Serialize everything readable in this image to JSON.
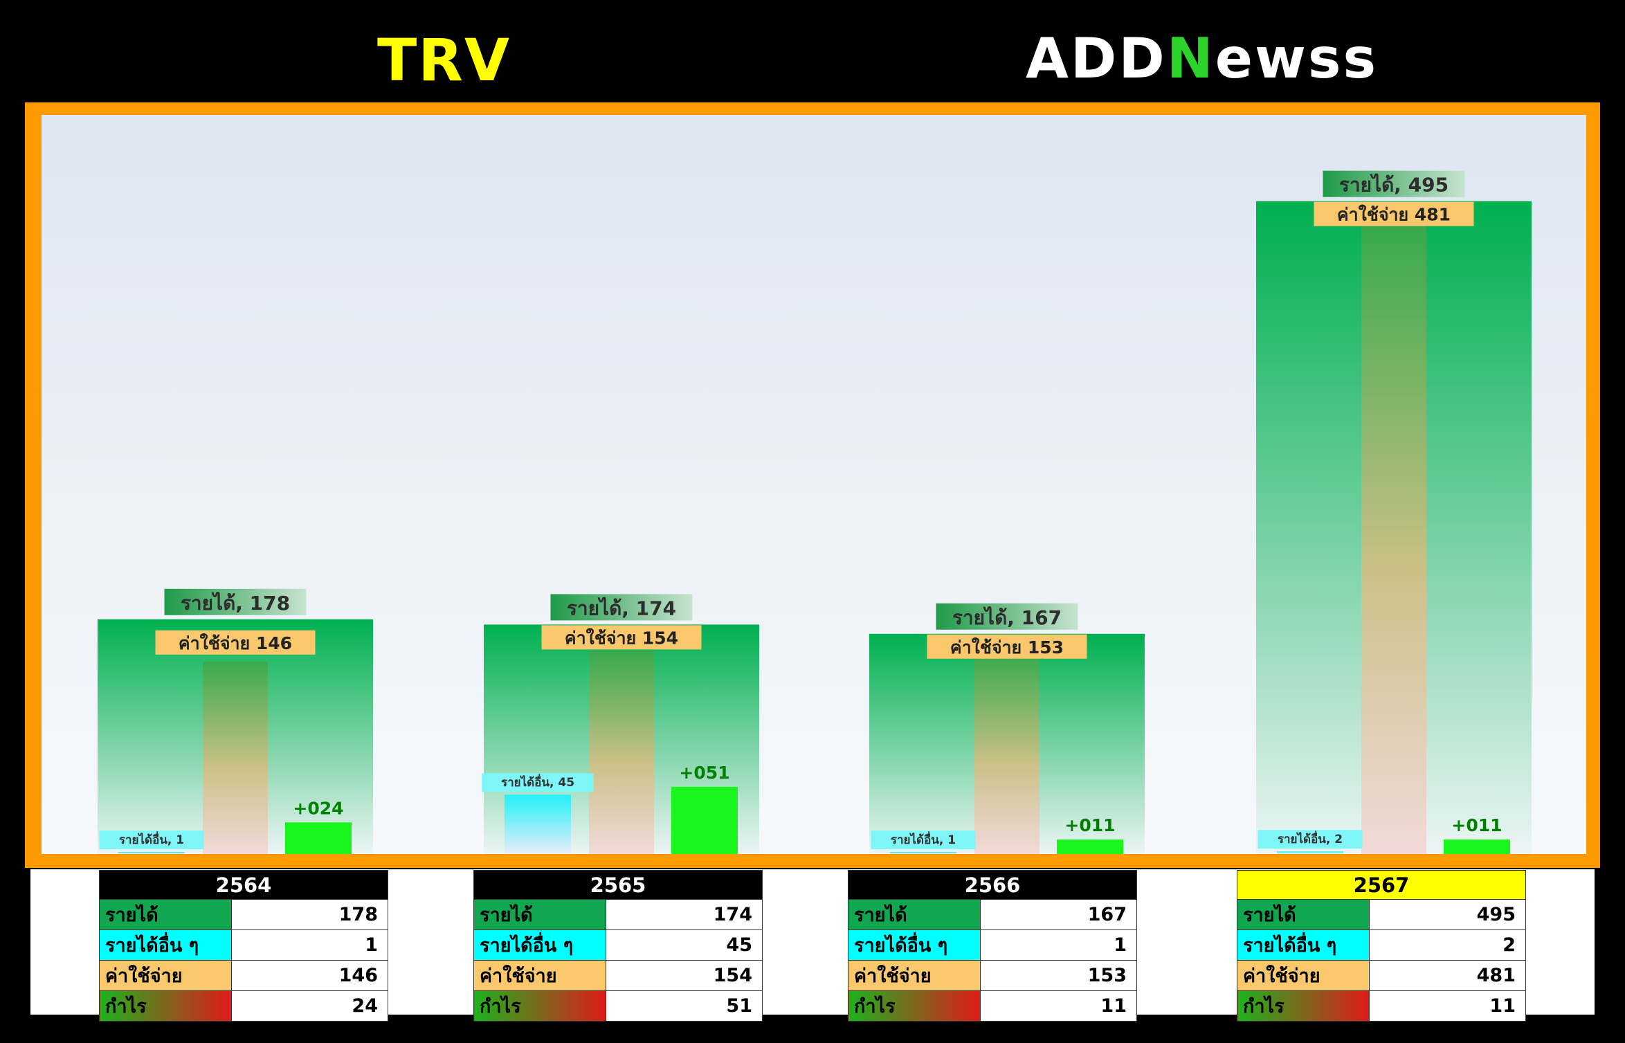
{
  "header": {
    "ticker": "TRV",
    "logo_part1": "ADD",
    "logo_part2": "N",
    "logo_part3": "ewss"
  },
  "colors": {
    "ticker": "#ffff00",
    "frame": "#ff9a00",
    "revenue": "#00b050",
    "other_income": "#00ffff",
    "expense": "#f9c86c",
    "profit_bar": "#19f51d",
    "profit_text": "#008000",
    "highlight_year": "#ffff00"
  },
  "chart_data": {
    "type": "bar",
    "categories": [
      "2564",
      "2565",
      "2566",
      "2567"
    ],
    "ylim": [
      0,
      530
    ],
    "series": [
      {
        "name": "รายได้",
        "values": [
          178,
          174,
          167,
          495
        ]
      },
      {
        "name": "รายได้อื่น ๆ",
        "values": [
          1,
          45,
          1,
          2
        ]
      },
      {
        "name": "ค่าใช้จ่าย",
        "values": [
          146,
          154,
          153,
          481
        ]
      },
      {
        "name": "กำไร",
        "values": [
          24,
          51,
          11,
          11
        ]
      }
    ],
    "labels": {
      "revenue": [
        "รายได้, 178",
        "รายได้, 174",
        "รายได้, 167",
        "รายได้, 495"
      ],
      "other": [
        "รายได้อื่น, 1",
        "รายได้อื่น, 45",
        "รายได้อื่น, 1",
        "รายได้อื่น, 2"
      ],
      "expense": [
        "ค่าใช้จ่าย 146",
        "ค่าใช้จ่าย 154",
        "ค่าใช้จ่าย 153",
        "ค่าใช้จ่าย 481"
      ],
      "profit": [
        "+024",
        "+051",
        "+011",
        "+011"
      ]
    }
  },
  "tables": [
    {
      "year": "2564",
      "highlight": false,
      "rows": [
        {
          "label": "รายได้",
          "value": "178"
        },
        {
          "label": "รายได้อื่น ๆ",
          "value": "1"
        },
        {
          "label": "ค่าใช้จ่าย",
          "value": "146"
        },
        {
          "label": "กำไร",
          "value": "24"
        }
      ]
    },
    {
      "year": "2565",
      "highlight": false,
      "rows": [
        {
          "label": "รายได้",
          "value": "174"
        },
        {
          "label": "รายได้อื่น ๆ",
          "value": "45"
        },
        {
          "label": "ค่าใช้จ่าย",
          "value": "154"
        },
        {
          "label": "กำไร",
          "value": "51"
        }
      ]
    },
    {
      "year": "2566",
      "highlight": false,
      "rows": [
        {
          "label": "รายได้",
          "value": "167"
        },
        {
          "label": "รายได้อื่น ๆ",
          "value": "1"
        },
        {
          "label": "ค่าใช้จ่าย",
          "value": "153"
        },
        {
          "label": "กำไร",
          "value": "11"
        }
      ]
    },
    {
      "year": "2567",
      "highlight": true,
      "rows": [
        {
          "label": "รายได้",
          "value": "495"
        },
        {
          "label": "รายได้อื่น ๆ",
          "value": "2"
        },
        {
          "label": "ค่าใช้จ่าย",
          "value": "481"
        },
        {
          "label": "กำไร",
          "value": "11"
        }
      ]
    }
  ]
}
